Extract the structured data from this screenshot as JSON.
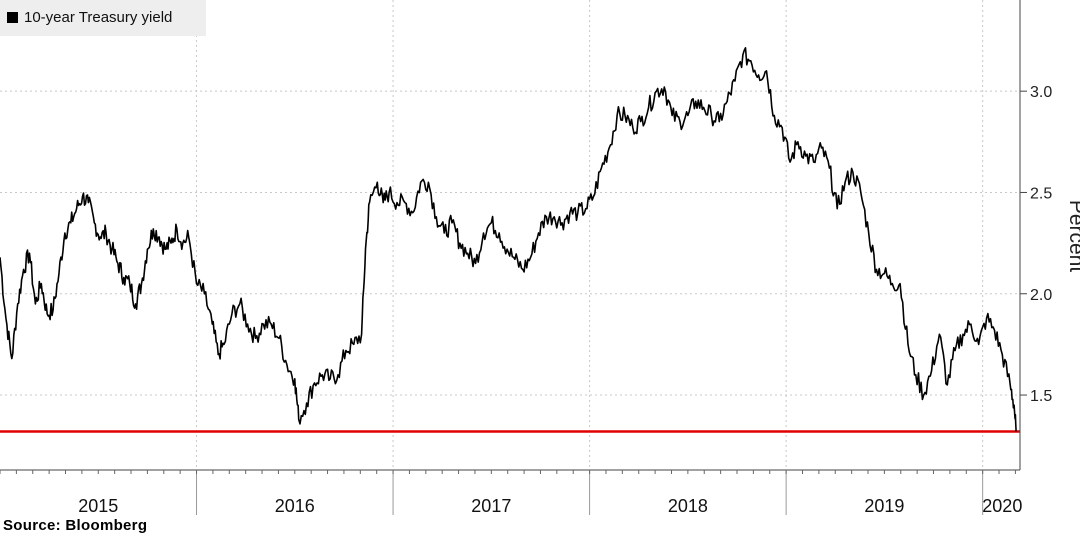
{
  "legend": {
    "label": "10-year Treasury yield",
    "swatch_color": "#000000"
  },
  "source": "Source:  Bloomberg",
  "chart_data": {
    "type": "line",
    "title": "",
    "xlabel": "",
    "ylabel": "Percent",
    "ylim": [
      1.13,
      3.45
    ],
    "yticks": [
      1.5,
      2.0,
      2.5,
      3.0
    ],
    "ytick_labels": [
      "1.5",
      "2.0",
      "2.5",
      "3.0"
    ],
    "xlim": [
      2015.0,
      2020.19
    ],
    "year_labels": [
      {
        "label": "2015",
        "center": 2015.5
      },
      {
        "label": "2016",
        "center": 2016.5
      },
      {
        "label": "2017",
        "center": 2017.5
      },
      {
        "label": "2018",
        "center": 2018.5
      },
      {
        "label": "2019",
        "center": 2019.5
      },
      {
        "label": "2020",
        "center": 2020.1
      }
    ],
    "grid": true,
    "legend_position": "top-left",
    "reference_line": {
      "value": 1.32,
      "color": "#e00000"
    },
    "series": [
      {
        "name": "10-year Treasury yield",
        "color": "#000000",
        "x": [
          2015.0,
          2015.03,
          2015.06,
          2015.09,
          2015.12,
          2015.15,
          2015.18,
          2015.21,
          2015.24,
          2015.27,
          2015.3,
          2015.33,
          2015.36,
          2015.39,
          2015.42,
          2015.45,
          2015.48,
          2015.51,
          2015.54,
          2015.57,
          2015.6,
          2015.63,
          2015.66,
          2015.69,
          2015.72,
          2015.75,
          2015.78,
          2015.81,
          2015.84,
          2015.87,
          2015.9,
          2015.93,
          2015.96,
          2016.0,
          2016.04,
          2016.08,
          2016.11,
          2016.14,
          2016.18,
          2016.22,
          2016.26,
          2016.3,
          2016.34,
          2016.38,
          2016.42,
          2016.46,
          2016.5,
          2016.52,
          2016.56,
          2016.6,
          2016.64,
          2016.68,
          2016.72,
          2016.76,
          2016.8,
          2016.84,
          2016.86,
          2016.88,
          2016.92,
          2016.95,
          2016.98,
          2017.02,
          2017.06,
          2017.1,
          2017.14,
          2017.18,
          2017.22,
          2017.26,
          2017.3,
          2017.34,
          2017.38,
          2017.42,
          2017.46,
          2017.5,
          2017.54,
          2017.58,
          2017.62,
          2017.66,
          2017.7,
          2017.74,
          2017.78,
          2017.82,
          2017.86,
          2017.9,
          2017.94,
          2017.98,
          2018.02,
          2018.06,
          2018.1,
          2018.14,
          2018.18,
          2018.22,
          2018.26,
          2018.3,
          2018.34,
          2018.38,
          2018.42,
          2018.46,
          2018.5,
          2018.54,
          2018.58,
          2018.62,
          2018.66,
          2018.7,
          2018.74,
          2018.78,
          2018.82,
          2018.86,
          2018.9,
          2018.94,
          2018.98,
          2019.02,
          2019.06,
          2019.1,
          2019.14,
          2019.18,
          2019.22,
          2019.26,
          2019.3,
          2019.34,
          2019.38,
          2019.42,
          2019.46,
          2019.5,
          2019.54,
          2019.58,
          2019.62,
          2019.66,
          2019.7,
          2019.74,
          2019.78,
          2019.82,
          2019.86,
          2019.9,
          2019.94,
          2019.98,
          2020.02,
          2020.06,
          2020.1,
          2020.14,
          2020.16,
          2020.17
        ],
        "y": [
          2.18,
          1.88,
          1.68,
          1.95,
          2.12,
          2.2,
          1.95,
          2.05,
          1.9,
          1.92,
          2.1,
          2.3,
          2.35,
          2.42,
          2.48,
          2.45,
          2.35,
          2.28,
          2.3,
          2.22,
          2.15,
          2.08,
          2.05,
          1.95,
          2.05,
          2.22,
          2.32,
          2.28,
          2.22,
          2.25,
          2.32,
          2.25,
          2.28,
          2.05,
          2.0,
          1.85,
          1.7,
          1.75,
          1.9,
          1.95,
          1.85,
          1.78,
          1.85,
          1.85,
          1.78,
          1.65,
          1.58,
          1.38,
          1.46,
          1.56,
          1.6,
          1.58,
          1.6,
          1.72,
          1.75,
          1.8,
          2.22,
          2.45,
          2.55,
          2.45,
          2.5,
          2.45,
          2.45,
          2.4,
          2.55,
          2.55,
          2.38,
          2.3,
          2.35,
          2.25,
          2.2,
          2.15,
          2.3,
          2.35,
          2.3,
          2.22,
          2.17,
          2.12,
          2.18,
          2.3,
          2.38,
          2.38,
          2.35,
          2.4,
          2.4,
          2.42,
          2.48,
          2.62,
          2.72,
          2.88,
          2.88,
          2.82,
          2.85,
          2.92,
          3.0,
          3.02,
          2.88,
          2.85,
          2.88,
          2.95,
          2.92,
          2.88,
          2.85,
          2.95,
          3.05,
          3.18,
          3.15,
          3.08,
          3.1,
          2.88,
          2.82,
          2.65,
          2.75,
          2.68,
          2.65,
          2.72,
          2.62,
          2.42,
          2.55,
          2.6,
          2.5,
          2.3,
          2.12,
          2.1,
          2.05,
          2.05,
          1.75,
          1.6,
          1.5,
          1.62,
          1.8,
          1.55,
          1.72,
          1.8,
          1.85,
          1.75,
          1.88,
          1.82,
          1.7,
          1.55,
          1.45,
          1.32
        ]
      }
    ]
  }
}
